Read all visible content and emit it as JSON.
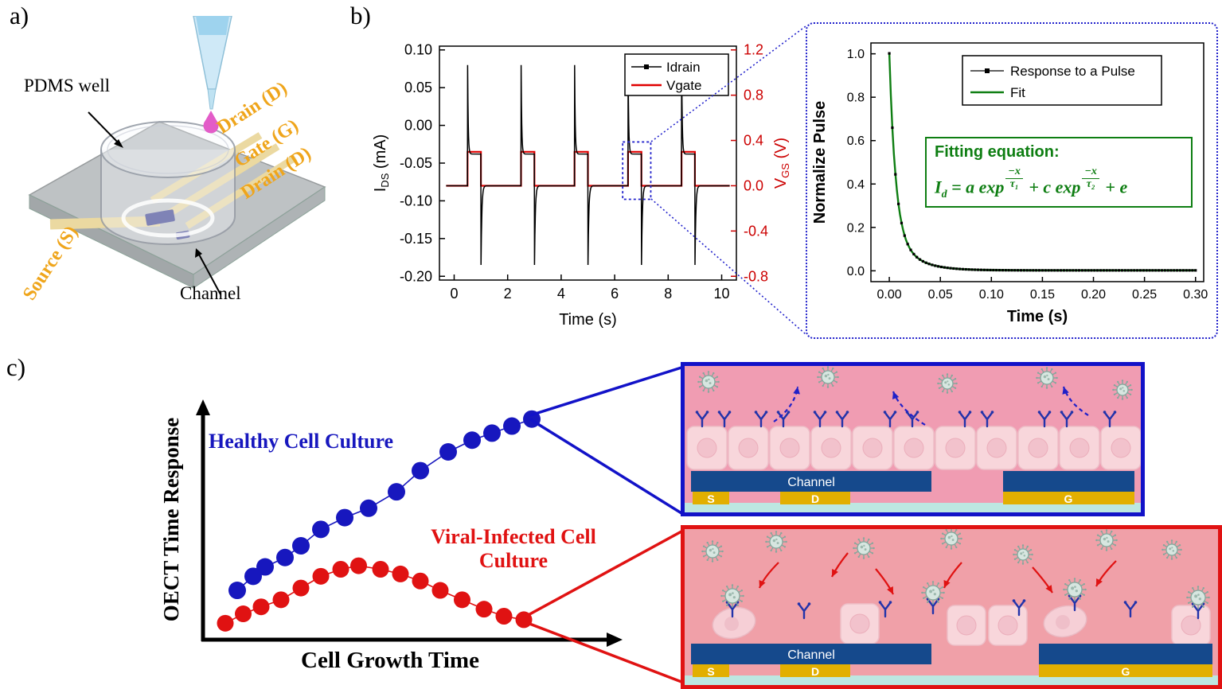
{
  "panel_a": {
    "label": "a)",
    "pdms_well_label": "PDMS well",
    "channel_label": "Channel",
    "drain_top_label": "Drain (D)",
    "gate_label": "Gate (G)",
    "drain_bottom_label": "Drain (D)",
    "source_label": "Source (S)",
    "electrode_label_color": "#EFA51B"
  },
  "panel_b": {
    "label": "b)",
    "fit_box": {
      "title": "Fitting equation:",
      "eq_lhs": "I",
      "eq_lhs_sub": "d",
      "eq_mid": "= a exp",
      "eq_f1_num": "−x",
      "eq_f1_den": "τ₁",
      "eq_plus_c": "+ c exp",
      "eq_f2_num": "−x",
      "eq_f2_den": "τ₂",
      "eq_tail": "+ e",
      "color": "#0E7E12"
    }
  },
  "panel_c": {
    "label": "c)",
    "ylabel": "OECT Time Response",
    "xlabel": "Cell Growth Time",
    "healthy_label": "Healthy Cell Culture",
    "infected_label": "Viral-Infected Cell Culture",
    "healthy_color": "#1717BE",
    "infected_color": "#E01212",
    "culture": {
      "channel": "Channel",
      "s": "S",
      "d": "D",
      "g": "G"
    }
  },
  "chart_data": [
    {
      "id": "pulse-chart",
      "type": "line",
      "title": "",
      "xlabel": "Time (s)",
      "ylabel_left": {
        "pre": "I",
        "sub": "DS",
        "post": " (mA)"
      },
      "ylabel_right": {
        "pre": "V",
        "sub": "GS",
        "post": " (V)"
      },
      "xlim": [
        -0.55,
        10.55
      ],
      "ylim_left": [
        -0.205,
        0.105
      ],
      "ylim_right": [
        -0.8333,
        1.2333
      ],
      "x_ticks": [
        0,
        2,
        4,
        6,
        8,
        10
      ],
      "y_left_ticks": [
        "0.10",
        "0.05",
        "0.00",
        "-0.05",
        "-0.10",
        "-0.15",
        "-0.20"
      ],
      "y_right_ticks": [
        "1.2",
        "0.8",
        "0.4",
        "0.0",
        "-0.4",
        "-0.8"
      ],
      "legend": [
        {
          "label": "Idrain",
          "color": "#000000"
        },
        {
          "label": "Vgate",
          "color": "#E00000"
        }
      ],
      "pulses_s": [
        [
          0.5,
          1.0
        ],
        [
          2.5,
          3.0
        ],
        [
          4.5,
          5.0
        ],
        [
          6.5,
          7.0
        ],
        [
          8.5,
          9.0
        ]
      ],
      "vgate_V": {
        "low": 0.0,
        "high": 0.3
      },
      "idrain_mA": {
        "baseline": -0.08,
        "pulse_plateau": -0.038,
        "onset_spike": 0.08,
        "offset_spike": -0.185
      },
      "zoom_box": {
        "x0": 6.3,
        "x1": 7.35,
        "y0": -0.098,
        "y1": -0.022,
        "color": "#2323CC"
      }
    },
    {
      "id": "decay-chart",
      "type": "scatter",
      "xlabel": "Time (s)",
      "ylabel": "Normalize Pulse",
      "xlim": [
        -0.018,
        0.308
      ],
      "ylim": [
        -0.05,
        1.05
      ],
      "x_ticks": [
        "0.00",
        "0.05",
        "0.10",
        "0.15",
        "0.20",
        "0.25",
        "0.30"
      ],
      "y_ticks": [
        "1.0",
        "0.8",
        "0.6",
        "0.4",
        "0.2",
        "0.0"
      ],
      "legend": [
        {
          "label": "Response to a Pulse",
          "color": "#000000",
          "marker": "square"
        },
        {
          "label": "Fit",
          "color": "#0E7E12",
          "marker": "line"
        }
      ],
      "fit": {
        "a": 0.8,
        "tau1": 0.006,
        "c": 0.2,
        "tau2": 0.02,
        "e": 0.002
      },
      "x_range": [
        0,
        0.3
      ],
      "sample_step": 0.003
    },
    {
      "id": "schematic-chart",
      "type": "scatter",
      "xlabel": "Cell Growth Time",
      "ylabel": "OECT Time Response",
      "series": [
        {
          "name": "Healthy Cell Culture",
          "color": "#1717BE",
          "points": [
            [
              0.07,
              0.21
            ],
            [
              0.11,
              0.27
            ],
            [
              0.14,
              0.31
            ],
            [
              0.19,
              0.35
            ],
            [
              0.23,
              0.4
            ],
            [
              0.28,
              0.47
            ],
            [
              0.34,
              0.52
            ],
            [
              0.4,
              0.56
            ],
            [
              0.47,
              0.63
            ],
            [
              0.53,
              0.72
            ],
            [
              0.6,
              0.8
            ],
            [
              0.66,
              0.85
            ],
            [
              0.71,
              0.88
            ],
            [
              0.76,
              0.91
            ],
            [
              0.81,
              0.94
            ]
          ]
        },
        {
          "name": "Viral-Infected Cell Culture",
          "color": "#E01212",
          "points": [
            [
              0.04,
              0.07
            ],
            [
              0.085,
              0.11
            ],
            [
              0.13,
              0.14
            ],
            [
              0.18,
              0.17
            ],
            [
              0.23,
              0.22
            ],
            [
              0.28,
              0.27
            ],
            [
              0.33,
              0.3
            ],
            [
              0.375,
              0.315
            ],
            [
              0.43,
              0.3
            ],
            [
              0.48,
              0.28
            ],
            [
              0.53,
              0.25
            ],
            [
              0.58,
              0.21
            ],
            [
              0.635,
              0.17
            ],
            [
              0.69,
              0.13
            ],
            [
              0.74,
              0.1
            ],
            [
              0.79,
              0.085
            ]
          ]
        }
      ]
    }
  ]
}
